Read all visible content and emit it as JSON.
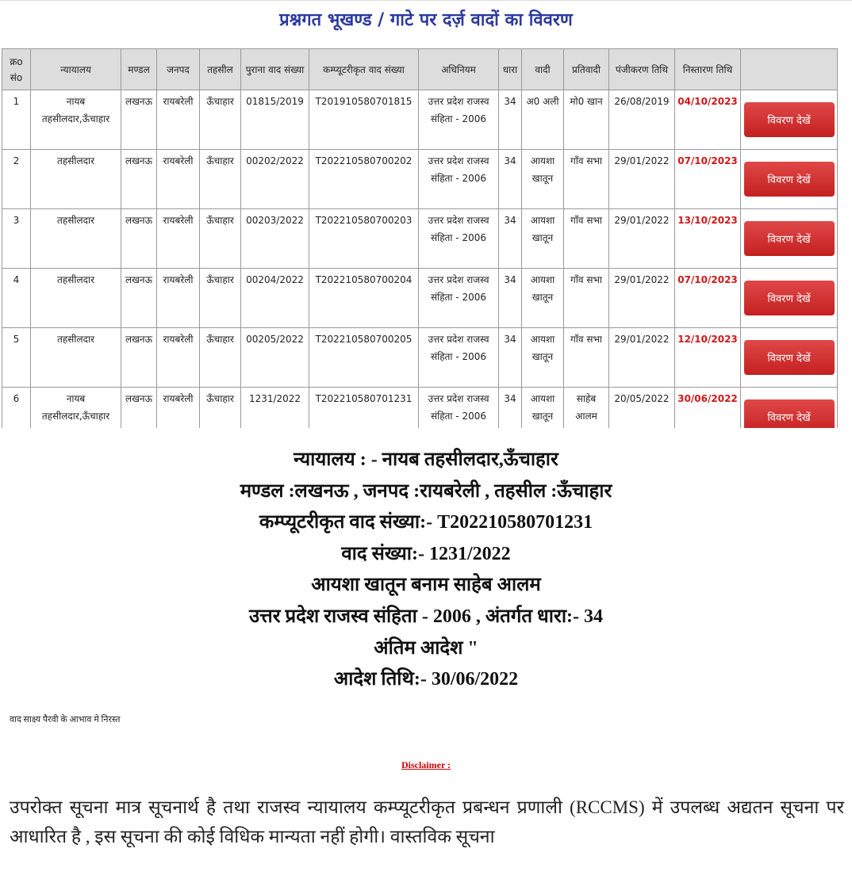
{
  "header": {
    "title": "प्रश्नगत भूखण्ड / गाटे पर दर्ज़ वादों का विवरण"
  },
  "table": {
    "columns": [
      "क्रo संo",
      "न्यायालय",
      "मण्डल",
      "जनपद",
      "तहसील",
      "पुराना वाद संख्या",
      "कम्प्यूटरीकृत वाद संख्या",
      "अधिनियम",
      "धारा",
      "वादी",
      "प्रतिवादी",
      "पंजीकरण तिथि",
      "निस्तारण तिथि"
    ],
    "rows": [
      [
        "1",
        "नायब तहसीलदार,ऊँचाहार",
        "लखनऊ",
        "रायबरेली",
        "ऊँचाहार",
        "01815/2019",
        "T201910580701815",
        "उत्तर प्रदेश राजस्व संहिता - 2006",
        "34",
        "अ0 अली",
        "मो0 खान",
        "26/08/2019",
        "04/10/2023"
      ],
      [
        "2",
        "तहसीलदार",
        "लखनऊ",
        "रायबरेली",
        "ऊँचाहार",
        "00202/2022",
        "T202210580700202",
        "उत्तर प्रदेश राजस्व संहिता - 2006",
        "34",
        "आयशा खातून",
        "गाँव सभा",
        "29/01/2022",
        "07/10/2023"
      ],
      [
        "3",
        "तहसीलदार",
        "लखनऊ",
        "रायबरेली",
        "ऊँचाहार",
        "00203/2022",
        "T202210580700203",
        "उत्तर प्रदेश राजस्व संहिता - 2006",
        "34",
        "आयशा खातून",
        "गाँव सभा",
        "29/01/2022",
        "13/10/2023"
      ],
      [
        "4",
        "तहसीलदार",
        "लखनऊ",
        "रायबरेली",
        "ऊँचाहार",
        "00204/2022",
        "T202210580700204",
        "उत्तर प्रदेश राजस्व संहिता - 2006",
        "34",
        "आयशा खातून",
        "गाँव सभा",
        "29/01/2022",
        "07/10/2023"
      ],
      [
        "5",
        "तहसीलदार",
        "लखनऊ",
        "रायबरेली",
        "ऊँचाहार",
        "00205/2022",
        "T202210580700205",
        "उत्तर प्रदेश राजस्व संहिता - 2006",
        "34",
        "आयशा खातून",
        "गाँव सभा",
        "29/01/2022",
        "12/10/2023"
      ],
      [
        "6",
        "नायब तहसीलदार,ऊँचाहार",
        "लखनऊ",
        "रायबरेली",
        "ऊँचाहार",
        "1231/2022",
        "T202210580701231",
        "उत्तर प्रदेश राजस्व संहिता - 2006",
        "34",
        "आयशा खातून",
        "साहेब आलम",
        "20/05/2022",
        "30/06/2022"
      ]
    ],
    "button_label": "विवरण देखें"
  },
  "details": {
    "lines": [
      "न्यायालय : - नायब तहसीलदार,ऊँचाहार",
      "मण्डल :लखनऊ , जनपद :रायबरेली , तहसील :ऊँचाहार",
      "कम्प्यूटरीकृत वाद संख्या:- T202210580701231",
      "वाद संख्या:- 1231/2022",
      "आयशा खातून बनाम साहेब आलम",
      "उत्तर प्रदेश राजस्व संहिता - 2006 , अंतर्गत धारा:- 34",
      "अंतिम आदेश \"",
      "आदेश तिथि:- 30/06/2022"
    ]
  },
  "note": "वाद साक्ष्य पैरवी के आभाव मे निरस्त",
  "disclaimer": {
    "heading": "Disclaimer :",
    "text": "उपरोक्त सूचना मात्र सूचनार्थ है तथा राजस्व न्यायालय कम्प्यूटरीकृत प्रबन्धन प्रणाली (RCCMS) में उपलब्ध अद्यतन सूचना पर आधारित है , इस सूचना की कोई विधिक मान्यता नहीं होगी। वास्तविक सूचना"
  }
}
